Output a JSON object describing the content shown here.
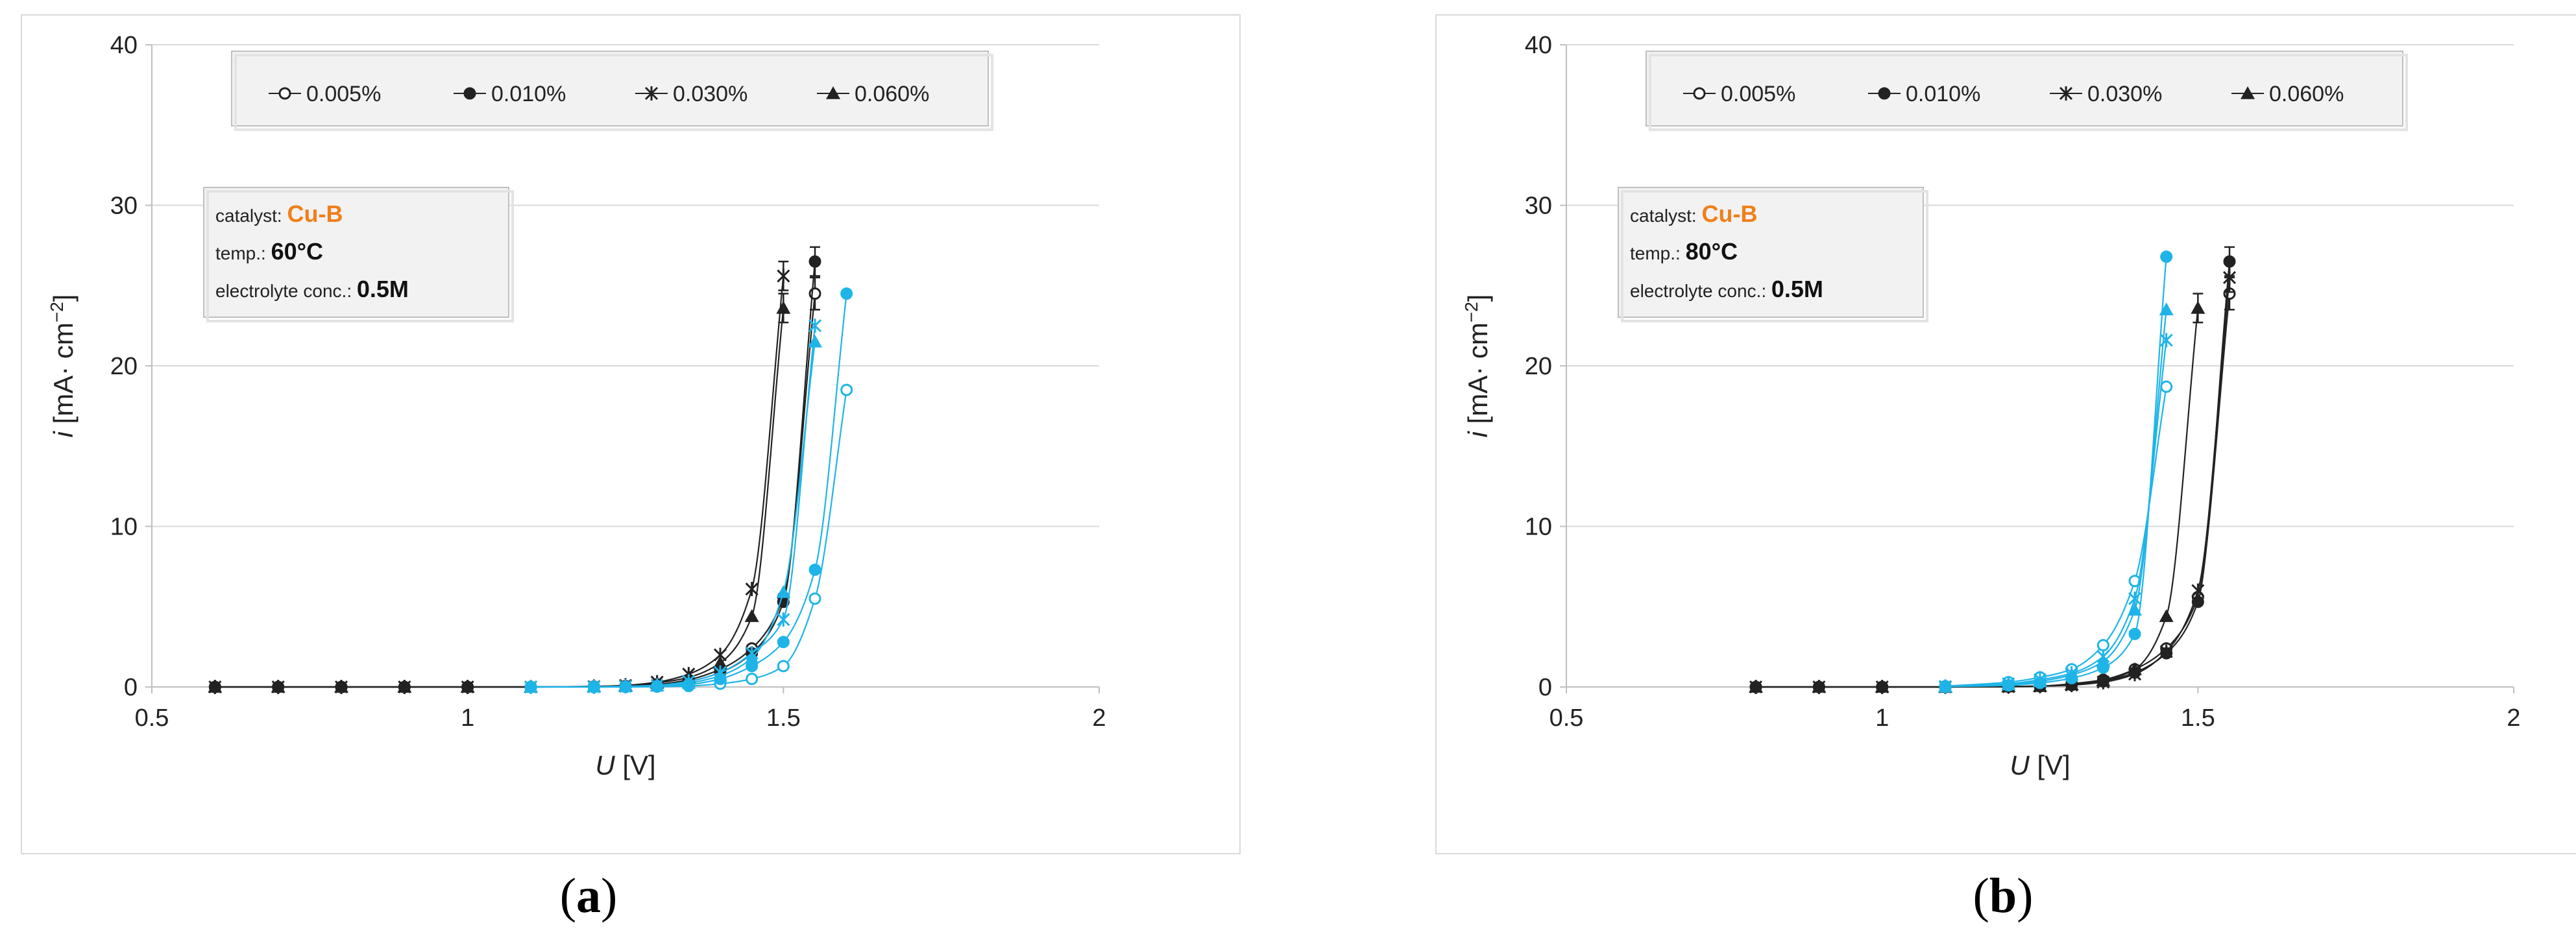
{
  "colors": {
    "black_series": "#222222",
    "blue_series": "#1fb4e8",
    "catalyst": "#f07f1a",
    "axis": "#bfbfbf",
    "grid": "#d9d9d9",
    "box_fill": "#f2f2f2",
    "box_border": "#bfbfbf"
  },
  "captions": {
    "a": "a",
    "b": "b"
  },
  "chart_data": [
    {
      "type": "line",
      "panel": "a",
      "xlabel_var": "U",
      "xlabel_unit": " [V]",
      "ylabel_var": "i",
      "ylabel_unit": " [mA· cm",
      "ylabel_sup": "−2",
      "ylabel_end": "]",
      "xlim": [
        0.5,
        2
      ],
      "ylim": [
        0,
        40
      ],
      "xticks": [
        "0.5",
        "1",
        "1.5",
        "2"
      ],
      "yticks": [
        "0",
        "10",
        "20",
        "30",
        "40"
      ],
      "grid": "horizontal",
      "legend_position": "top",
      "legend": [
        {
          "name": "0.005%",
          "marker": "open-circle"
        },
        {
          "name": "0.010%",
          "marker": "filled-circle"
        },
        {
          "name": "0.030%",
          "marker": "star"
        },
        {
          "name": "0.060%",
          "marker": "triangle"
        }
      ],
      "info": {
        "catalyst_label": "catalyst: ",
        "catalyst_value": "Cu-B",
        "temp_label": "temp.: ",
        "temp_value": "60°C",
        "conc_label": "electrolyte conc.: ",
        "conc_value": "0.5M"
      },
      "series": [
        {
          "marker": "open-circle",
          "color": "black",
          "x": [
            0.6,
            0.7,
            0.8,
            0.9,
            1.0,
            1.1,
            1.2,
            1.25,
            1.3,
            1.35,
            1.4,
            1.45,
            1.5,
            1.55
          ],
          "y": [
            0,
            0,
            0,
            0,
            0,
            0,
            0.02,
            0.05,
            0.15,
            0.45,
            1.1,
            2.4,
            5.6,
            24.5
          ],
          "error_last": 1.0
        },
        {
          "marker": "filled-circle",
          "color": "black",
          "x": [
            0.6,
            0.7,
            0.8,
            0.9,
            1.0,
            1.1,
            1.2,
            1.25,
            1.3,
            1.35,
            1.4,
            1.45,
            1.5,
            1.55
          ],
          "y": [
            0,
            0,
            0,
            0,
            0,
            0,
            0.02,
            0.05,
            0.12,
            0.35,
            0.9,
            2.1,
            5.3,
            26.5
          ],
          "error_last": 0.9
        },
        {
          "marker": "star",
          "color": "black",
          "x": [
            0.6,
            0.7,
            0.8,
            0.9,
            1.0,
            1.1,
            1.2,
            1.25,
            1.3,
            1.35,
            1.4,
            1.45,
            1.5
          ],
          "y": [
            0,
            0,
            0,
            0,
            0,
            0,
            0.03,
            0.1,
            0.3,
            0.8,
            2.0,
            6.1,
            25.6
          ],
          "error_last": 0.9
        },
        {
          "marker": "triangle",
          "color": "black",
          "x": [
            0.6,
            0.7,
            0.8,
            0.9,
            1.0,
            1.1,
            1.2,
            1.25,
            1.3,
            1.35,
            1.4,
            1.45,
            1.5
          ],
          "y": [
            0,
            0,
            0,
            0,
            0,
            0,
            0.03,
            0.08,
            0.25,
            0.6,
            1.5,
            4.4,
            23.6
          ],
          "error_last": 0.9
        },
        {
          "marker": "open-circle",
          "color": "blue",
          "x": [
            1.1,
            1.2,
            1.25,
            1.3,
            1.35,
            1.4,
            1.45,
            1.5,
            1.55,
            1.6
          ],
          "y": [
            0,
            0,
            0,
            0.02,
            0.06,
            0.2,
            0.5,
            1.3,
            5.5,
            18.5
          ]
        },
        {
          "marker": "filled-circle",
          "color": "blue",
          "x": [
            1.1,
            1.2,
            1.25,
            1.3,
            1.35,
            1.4,
            1.45,
            1.5,
            1.55,
            1.6
          ],
          "y": [
            0,
            0,
            0.01,
            0.05,
            0.15,
            0.5,
            1.3,
            2.8,
            7.3,
            24.5
          ]
        },
        {
          "marker": "star",
          "color": "blue",
          "x": [
            1.1,
            1.2,
            1.25,
            1.3,
            1.35,
            1.4,
            1.45,
            1.5,
            1.55
          ],
          "y": [
            0,
            0.01,
            0.04,
            0.1,
            0.35,
            0.9,
            2.1,
            4.2,
            22.5
          ]
        },
        {
          "marker": "triangle",
          "color": "blue",
          "x": [
            1.1,
            1.2,
            1.25,
            1.3,
            1.35,
            1.4,
            1.45,
            1.5,
            1.55
          ],
          "y": [
            0,
            0.01,
            0.03,
            0.08,
            0.25,
            0.7,
            1.8,
            5.9,
            21.5
          ]
        }
      ]
    },
    {
      "type": "line",
      "panel": "b",
      "xlabel_var": "U",
      "xlabel_unit": " [V]",
      "ylabel_var": "i",
      "ylabel_unit": " [mA· cm",
      "ylabel_sup": "−2",
      "ylabel_end": "]",
      "xlim": [
        0.5,
        2
      ],
      "ylim": [
        0,
        40
      ],
      "xticks": [
        "0.5",
        "1",
        "1.5",
        "2"
      ],
      "yticks": [
        "0",
        "10",
        "20",
        "30",
        "40"
      ],
      "grid": "horizontal",
      "legend_position": "top",
      "legend": [
        {
          "name": "0.005%",
          "marker": "open-circle"
        },
        {
          "name": "0.010%",
          "marker": "filled-circle"
        },
        {
          "name": "0.030%",
          "marker": "star"
        },
        {
          "name": "0.060%",
          "marker": "triangle"
        }
      ],
      "info": {
        "catalyst_label": "catalyst: ",
        "catalyst_value": "Cu-B",
        "temp_label": "temp.: ",
        "temp_value": "80°C",
        "conc_label": "electrolyte conc.: ",
        "conc_value": "0.5M"
      },
      "series": [
        {
          "marker": "open-circle",
          "color": "black",
          "x": [
            0.8,
            0.9,
            1.0,
            1.1,
            1.2,
            1.25,
            1.3,
            1.35,
            1.4,
            1.45,
            1.5,
            1.55
          ],
          "y": [
            0,
            0,
            0,
            0,
            0.02,
            0.05,
            0.2,
            0.45,
            1.1,
            2.4,
            5.6,
            24.5
          ],
          "error_last": 1.0
        },
        {
          "marker": "filled-circle",
          "color": "black",
          "x": [
            0.8,
            0.9,
            1.0,
            1.1,
            1.2,
            1.25,
            1.3,
            1.35,
            1.4,
            1.45,
            1.5,
            1.55
          ],
          "y": [
            0,
            0,
            0,
            0,
            0.02,
            0.05,
            0.12,
            0.35,
            0.9,
            2.1,
            5.3,
            26.5
          ],
          "error_last": 0.9
        },
        {
          "marker": "star",
          "color": "black",
          "x": [
            0.8,
            0.9,
            1.0,
            1.1,
            1.2,
            1.25,
            1.3,
            1.35,
            1.4,
            1.45,
            1.5,
            1.55
          ],
          "y": [
            0,
            0,
            0,
            0,
            0.02,
            0.05,
            0.12,
            0.3,
            0.8,
            2.2,
            6.0,
            25.5
          ],
          "error_last": 0.9
        },
        {
          "marker": "triangle",
          "color": "black",
          "x": [
            0.8,
            0.9,
            1.0,
            1.1,
            1.2,
            1.25,
            1.3,
            1.35,
            1.4,
            1.45,
            1.5
          ],
          "y": [
            0,
            0,
            0,
            0,
            0.02,
            0.05,
            0.15,
            0.4,
            1.1,
            4.4,
            23.6
          ],
          "error_last": 0.9
        },
        {
          "marker": "open-circle",
          "color": "blue",
          "x": [
            1.1,
            1.2,
            1.25,
            1.3,
            1.35,
            1.4,
            1.45
          ],
          "y": [
            0.05,
            0.3,
            0.6,
            1.1,
            2.6,
            6.6,
            18.7
          ]
        },
        {
          "marker": "filled-circle",
          "color": "blue",
          "x": [
            1.1,
            1.2,
            1.25,
            1.3,
            1.35,
            1.4,
            1.45
          ],
          "y": [
            0.02,
            0.1,
            0.25,
            0.55,
            1.2,
            3.3,
            26.8
          ]
        },
        {
          "marker": "star",
          "color": "blue",
          "x": [
            1.1,
            1.2,
            1.25,
            1.3,
            1.35,
            1.4,
            1.45
          ],
          "y": [
            0.03,
            0.2,
            0.45,
            0.85,
            1.9,
            5.5,
            21.6
          ]
        },
        {
          "marker": "triangle",
          "color": "blue",
          "x": [
            1.1,
            1.2,
            1.25,
            1.3,
            1.35,
            1.4,
            1.45
          ],
          "y": [
            0.03,
            0.15,
            0.35,
            0.75,
            1.6,
            4.8,
            23.5
          ]
        }
      ]
    }
  ]
}
